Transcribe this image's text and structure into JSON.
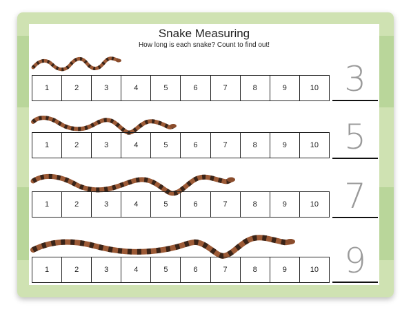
{
  "title": "Snake Measuring",
  "subtitle": "How long is each snake? Count to find out!",
  "ruler_numbers": [
    "1",
    "2",
    "3",
    "4",
    "5",
    "6",
    "7",
    "8",
    "9",
    "10"
  ],
  "rows": [
    {
      "snake_length_units": 3,
      "answer": "3"
    },
    {
      "snake_length_units": 5,
      "answer": "5"
    },
    {
      "snake_length_units": 7,
      "answer": "7"
    },
    {
      "snake_length_units": 9,
      "answer": "9"
    }
  ],
  "colors": {
    "frame_light": "#cfe2b2",
    "frame_dark": "#b9d69a",
    "snake_body": "#9c5a36",
    "snake_blotch": "#3a2418",
    "traced_digit": "#9a9a9a"
  }
}
